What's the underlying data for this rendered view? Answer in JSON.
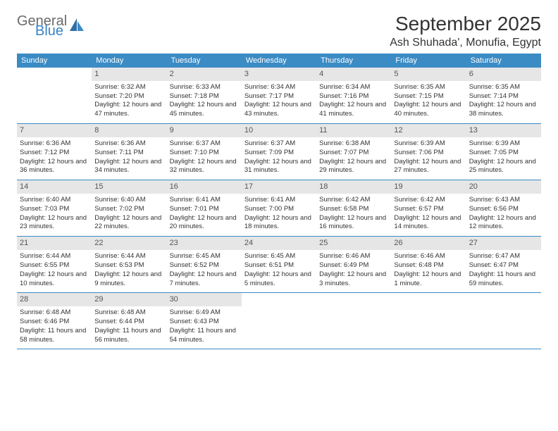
{
  "brand": {
    "part1": "General",
    "part2": "Blue"
  },
  "title": "September 2025",
  "location": "Ash Shuhada', Monufia, Egypt",
  "weekdays": [
    "Sunday",
    "Monday",
    "Tuesday",
    "Wednesday",
    "Thursday",
    "Friday",
    "Saturday"
  ],
  "colors": {
    "header_bg": "#3b8bc4",
    "daynum_bg": "#e6e6e6",
    "text": "#333333",
    "logo_gray": "#6a6a6a",
    "logo_blue": "#3b82c4"
  },
  "weeks": [
    [
      {
        "n": "",
        "sr": "",
        "ss": "",
        "dl": ""
      },
      {
        "n": "1",
        "sr": "Sunrise: 6:32 AM",
        "ss": "Sunset: 7:20 PM",
        "dl": "Daylight: 12 hours and 47 minutes."
      },
      {
        "n": "2",
        "sr": "Sunrise: 6:33 AM",
        "ss": "Sunset: 7:18 PM",
        "dl": "Daylight: 12 hours and 45 minutes."
      },
      {
        "n": "3",
        "sr": "Sunrise: 6:34 AM",
        "ss": "Sunset: 7:17 PM",
        "dl": "Daylight: 12 hours and 43 minutes."
      },
      {
        "n": "4",
        "sr": "Sunrise: 6:34 AM",
        "ss": "Sunset: 7:16 PM",
        "dl": "Daylight: 12 hours and 41 minutes."
      },
      {
        "n": "5",
        "sr": "Sunrise: 6:35 AM",
        "ss": "Sunset: 7:15 PM",
        "dl": "Daylight: 12 hours and 40 minutes."
      },
      {
        "n": "6",
        "sr": "Sunrise: 6:35 AM",
        "ss": "Sunset: 7:14 PM",
        "dl": "Daylight: 12 hours and 38 minutes."
      }
    ],
    [
      {
        "n": "7",
        "sr": "Sunrise: 6:36 AM",
        "ss": "Sunset: 7:12 PM",
        "dl": "Daylight: 12 hours and 36 minutes."
      },
      {
        "n": "8",
        "sr": "Sunrise: 6:36 AM",
        "ss": "Sunset: 7:11 PM",
        "dl": "Daylight: 12 hours and 34 minutes."
      },
      {
        "n": "9",
        "sr": "Sunrise: 6:37 AM",
        "ss": "Sunset: 7:10 PM",
        "dl": "Daylight: 12 hours and 32 minutes."
      },
      {
        "n": "10",
        "sr": "Sunrise: 6:37 AM",
        "ss": "Sunset: 7:09 PM",
        "dl": "Daylight: 12 hours and 31 minutes."
      },
      {
        "n": "11",
        "sr": "Sunrise: 6:38 AM",
        "ss": "Sunset: 7:07 PM",
        "dl": "Daylight: 12 hours and 29 minutes."
      },
      {
        "n": "12",
        "sr": "Sunrise: 6:39 AM",
        "ss": "Sunset: 7:06 PM",
        "dl": "Daylight: 12 hours and 27 minutes."
      },
      {
        "n": "13",
        "sr": "Sunrise: 6:39 AM",
        "ss": "Sunset: 7:05 PM",
        "dl": "Daylight: 12 hours and 25 minutes."
      }
    ],
    [
      {
        "n": "14",
        "sr": "Sunrise: 6:40 AM",
        "ss": "Sunset: 7:03 PM",
        "dl": "Daylight: 12 hours and 23 minutes."
      },
      {
        "n": "15",
        "sr": "Sunrise: 6:40 AM",
        "ss": "Sunset: 7:02 PM",
        "dl": "Daylight: 12 hours and 22 minutes."
      },
      {
        "n": "16",
        "sr": "Sunrise: 6:41 AM",
        "ss": "Sunset: 7:01 PM",
        "dl": "Daylight: 12 hours and 20 minutes."
      },
      {
        "n": "17",
        "sr": "Sunrise: 6:41 AM",
        "ss": "Sunset: 7:00 PM",
        "dl": "Daylight: 12 hours and 18 minutes."
      },
      {
        "n": "18",
        "sr": "Sunrise: 6:42 AM",
        "ss": "Sunset: 6:58 PM",
        "dl": "Daylight: 12 hours and 16 minutes."
      },
      {
        "n": "19",
        "sr": "Sunrise: 6:42 AM",
        "ss": "Sunset: 6:57 PM",
        "dl": "Daylight: 12 hours and 14 minutes."
      },
      {
        "n": "20",
        "sr": "Sunrise: 6:43 AM",
        "ss": "Sunset: 6:56 PM",
        "dl": "Daylight: 12 hours and 12 minutes."
      }
    ],
    [
      {
        "n": "21",
        "sr": "Sunrise: 6:44 AM",
        "ss": "Sunset: 6:55 PM",
        "dl": "Daylight: 12 hours and 10 minutes."
      },
      {
        "n": "22",
        "sr": "Sunrise: 6:44 AM",
        "ss": "Sunset: 6:53 PM",
        "dl": "Daylight: 12 hours and 9 minutes."
      },
      {
        "n": "23",
        "sr": "Sunrise: 6:45 AM",
        "ss": "Sunset: 6:52 PM",
        "dl": "Daylight: 12 hours and 7 minutes."
      },
      {
        "n": "24",
        "sr": "Sunrise: 6:45 AM",
        "ss": "Sunset: 6:51 PM",
        "dl": "Daylight: 12 hours and 5 minutes."
      },
      {
        "n": "25",
        "sr": "Sunrise: 6:46 AM",
        "ss": "Sunset: 6:49 PM",
        "dl": "Daylight: 12 hours and 3 minutes."
      },
      {
        "n": "26",
        "sr": "Sunrise: 6:46 AM",
        "ss": "Sunset: 6:48 PM",
        "dl": "Daylight: 12 hours and 1 minute."
      },
      {
        "n": "27",
        "sr": "Sunrise: 6:47 AM",
        "ss": "Sunset: 6:47 PM",
        "dl": "Daylight: 11 hours and 59 minutes."
      }
    ],
    [
      {
        "n": "28",
        "sr": "Sunrise: 6:48 AM",
        "ss": "Sunset: 6:46 PM",
        "dl": "Daylight: 11 hours and 58 minutes."
      },
      {
        "n": "29",
        "sr": "Sunrise: 6:48 AM",
        "ss": "Sunset: 6:44 PM",
        "dl": "Daylight: 11 hours and 56 minutes."
      },
      {
        "n": "30",
        "sr": "Sunrise: 6:49 AM",
        "ss": "Sunset: 6:43 PM",
        "dl": "Daylight: 11 hours and 54 minutes."
      },
      {
        "n": "",
        "sr": "",
        "ss": "",
        "dl": ""
      },
      {
        "n": "",
        "sr": "",
        "ss": "",
        "dl": ""
      },
      {
        "n": "",
        "sr": "",
        "ss": "",
        "dl": ""
      },
      {
        "n": "",
        "sr": "",
        "ss": "",
        "dl": ""
      }
    ]
  ]
}
